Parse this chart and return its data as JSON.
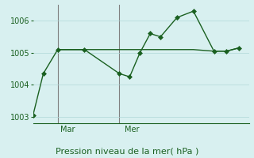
{
  "title": "Pression niveau de la mer( hPa )",
  "background_color": "#d8f0f0",
  "grid_color": "#b0d8d8",
  "line_color": "#1a6020",
  "marker_color": "#1a6020",
  "ylim": [
    1002.8,
    1006.5
  ],
  "yticks": [
    1003,
    1004,
    1005,
    1006
  ],
  "vline_positions": [
    0.12,
    0.42
  ],
  "vline_labels": [
    "Mar",
    "Mer"
  ],
  "series1_x": [
    0,
    0.05,
    0.12,
    0.25,
    0.42,
    0.47,
    0.52,
    0.57,
    0.62,
    0.7,
    0.78,
    0.88,
    0.94,
    1.0
  ],
  "series1_y": [
    1003.05,
    1004.35,
    1005.1,
    1005.1,
    1004.35,
    1004.25,
    1005.0,
    1005.6,
    1005.5,
    1006.1,
    1006.3,
    1005.05,
    1005.05,
    1005.15
  ],
  "series2_x": [
    0.12,
    0.3,
    0.42,
    0.48,
    0.55,
    0.62,
    0.68,
    0.78,
    0.88,
    0.94,
    1.0
  ],
  "series2_y": [
    1005.1,
    1005.1,
    1005.1,
    1005.1,
    1005.1,
    1005.1,
    1005.1,
    1005.1,
    1005.05,
    1005.05,
    1005.15
  ]
}
